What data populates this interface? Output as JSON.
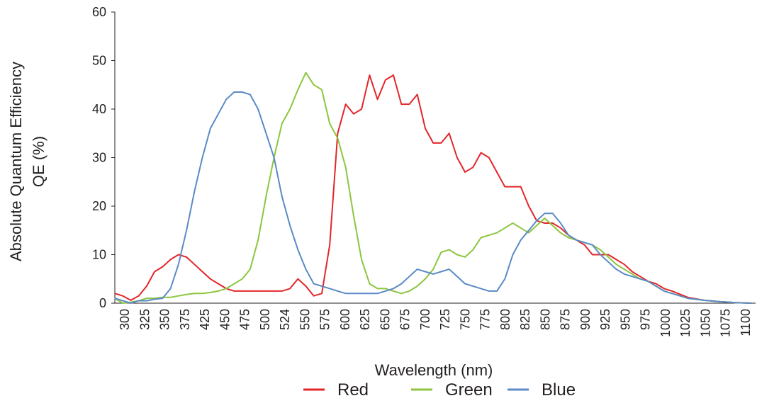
{
  "chart_data": {
    "type": "line",
    "title": "",
    "ylabel": [
      "Absolute Quantum Efficiency",
      "QE (%)"
    ],
    "xlabel": "Wavelength (nm)",
    "ylim": [
      0,
      60
    ],
    "y_ticks": [
      "0",
      "10",
      "20",
      "30",
      "40",
      "50",
      "60"
    ],
    "x_tick_labels": [
      "300",
      "325",
      "350",
      "375",
      "425",
      "450",
      "475",
      "500",
      "524",
      "550",
      "575",
      "600",
      "625",
      "650",
      "675",
      "700",
      "725",
      "750",
      "775",
      "800",
      "825",
      "850",
      "875",
      "900",
      "925",
      "950",
      "975",
      "1000",
      "1025",
      "1050",
      "1075",
      "1100"
    ],
    "grid": false,
    "legend_position": "bottom-center",
    "series": [
      {
        "name": "Red",
        "color": "#e3262a",
        "x": [
          300,
          310,
          320,
          330,
          340,
          350,
          360,
          370,
          380,
          390,
          400,
          410,
          420,
          430,
          440,
          450,
          460,
          470,
          480,
          490,
          500,
          510,
          520,
          530,
          540,
          550,
          560,
          570,
          580,
          590,
          600,
          610,
          620,
          630,
          640,
          650,
          660,
          670,
          680,
          690,
          700,
          710,
          720,
          730,
          740,
          750,
          760,
          770,
          780,
          790,
          800,
          810,
          820,
          830,
          840,
          850,
          860,
          870,
          880,
          890,
          900,
          910,
          920,
          930,
          940,
          950,
          960,
          970,
          980,
          990,
          1000,
          1020,
          1040,
          1060,
          1080,
          1100
        ],
        "y": [
          2.0,
          1.5,
          0.6,
          1.5,
          3.5,
          6.5,
          7.5,
          9.0,
          10.0,
          9.5,
          8.0,
          6.5,
          5.0,
          4.0,
          3.0,
          2.5,
          2.5,
          2.5,
          2.5,
          2.5,
          2.5,
          2.5,
          3.0,
          5.0,
          3.5,
          1.5,
          2.0,
          12,
          35,
          41,
          39,
          40,
          47,
          42,
          46,
          47,
          41,
          41,
          43,
          36,
          33,
          33,
          35,
          30,
          27,
          28,
          31,
          30,
          27,
          24,
          24,
          24,
          20,
          17,
          16.5,
          16.5,
          15.5,
          14,
          13,
          12,
          10,
          10,
          10,
          9,
          8,
          6.5,
          5.5,
          4.5,
          4,
          3,
          2.5,
          1.2,
          0.6,
          0.3,
          0.1,
          0.0
        ]
      },
      {
        "name": "Green",
        "color": "#8cc63f",
        "x": [
          300,
          310,
          320,
          330,
          340,
          350,
          360,
          370,
          380,
          390,
          400,
          410,
          420,
          430,
          440,
          450,
          460,
          470,
          480,
          490,
          500,
          510,
          520,
          530,
          540,
          550,
          560,
          570,
          580,
          590,
          600,
          610,
          620,
          630,
          640,
          650,
          660,
          670,
          680,
          690,
          700,
          710,
          720,
          730,
          740,
          750,
          760,
          770,
          780,
          790,
          800,
          810,
          820,
          830,
          840,
          850,
          860,
          870,
          880,
          890,
          900,
          910,
          920,
          930,
          940,
          950,
          960,
          970,
          980,
          990,
          1000,
          1020,
          1040,
          1060,
          1080,
          1100
        ],
        "y": [
          1.0,
          0.0,
          0.2,
          0.5,
          1.0,
          1.0,
          1.2,
          1.2,
          1.5,
          1.8,
          2.0,
          2.0,
          2.2,
          2.5,
          3.0,
          4.0,
          5.0,
          7.0,
          13.0,
          22.0,
          30.0,
          37.0,
          40.0,
          44.0,
          47.5,
          45.0,
          44.0,
          37.0,
          34.0,
          28.0,
          18.0,
          9.0,
          4.0,
          3.0,
          3.0,
          2.5,
          2.0,
          2.5,
          3.5,
          5.0,
          7.0,
          10.5,
          11.0,
          10.0,
          9.5,
          11.0,
          13.5,
          14.0,
          14.5,
          15.5,
          16.5,
          15.5,
          14.5,
          16.0,
          17.5,
          16.0,
          14.5,
          13.5,
          13.0,
          12.5,
          12.0,
          11.0,
          9.5,
          8.0,
          7.0,
          6.0,
          5.0,
          4.5,
          3.5,
          2.5,
          2.0,
          1.0,
          0.6,
          0.3,
          0.1,
          0.0
        ]
      },
      {
        "name": "Blue",
        "color": "#5b8ac6",
        "x": [
          300,
          310,
          320,
          330,
          340,
          350,
          360,
          370,
          380,
          390,
          400,
          410,
          420,
          430,
          440,
          450,
          460,
          470,
          480,
          490,
          500,
          510,
          520,
          530,
          540,
          550,
          560,
          570,
          580,
          590,
          600,
          610,
          620,
          630,
          640,
          650,
          660,
          670,
          680,
          690,
          700,
          710,
          720,
          730,
          740,
          750,
          760,
          770,
          780,
          790,
          800,
          810,
          820,
          830,
          840,
          850,
          860,
          870,
          880,
          890,
          900,
          910,
          920,
          930,
          940,
          950,
          960,
          970,
          980,
          990,
          1000,
          1020,
          1040,
          1060,
          1080,
          1100
        ],
        "y": [
          1.0,
          0.5,
          0.0,
          0.5,
          0.5,
          0.8,
          1.0,
          3.0,
          8.0,
          15.0,
          23.0,
          30.0,
          36.0,
          39.0,
          42.0,
          43.5,
          43.5,
          43.0,
          40.0,
          35.0,
          30.0,
          22.0,
          16.0,
          11.0,
          7.0,
          4.0,
          3.5,
          3.0,
          2.5,
          2.0,
          2.0,
          2.0,
          2.0,
          2.0,
          2.5,
          3.0,
          4.0,
          5.5,
          7.0,
          6.5,
          6.0,
          6.5,
          7.0,
          5.5,
          4.0,
          3.5,
          3.0,
          2.5,
          2.5,
          5.0,
          10.0,
          13.0,
          15.0,
          17.0,
          18.5,
          18.5,
          16.5,
          14.0,
          13.0,
          12.5,
          12.0,
          10.0,
          8.5,
          7.0,
          6.0,
          5.5,
          5.0,
          4.5,
          3.5,
          2.5,
          2.0,
          1.0,
          0.6,
          0.3,
          0.1,
          0.0
        ]
      }
    ]
  }
}
